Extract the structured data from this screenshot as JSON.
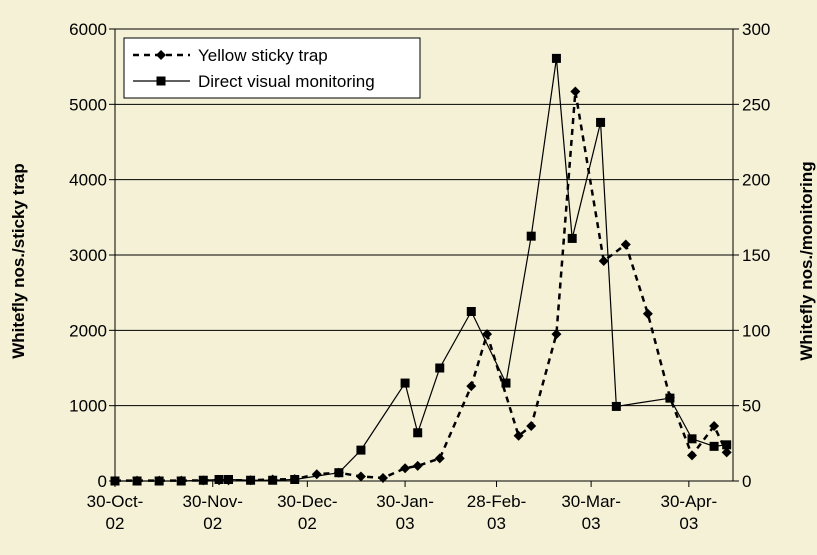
{
  "chart_data": {
    "type": "line",
    "title": "",
    "ylabel_left": "Whitefly nos./sticky trap",
    "ylabel_right": "Whitefly nos./monitoring",
    "ylim_left": [
      0,
      6000
    ],
    "ylim_right": [
      0,
      300
    ],
    "yticks_left": [
      "0",
      "1000",
      "2000",
      "3000",
      "4000",
      "5000",
      "6000"
    ],
    "yticks_right": [
      "0",
      "50",
      "100",
      "150",
      "200",
      "250",
      "300"
    ],
    "xlim": [
      "2002-10-30",
      "2003-05-14"
    ],
    "xticks": [
      {
        "date": "2002-10-30",
        "line1": "30-Oct-",
        "line2": "02"
      },
      {
        "date": "2002-11-30",
        "line1": "30-Nov-",
        "line2": "02"
      },
      {
        "date": "2002-12-30",
        "line1": "30-Dec-",
        "line2": "02"
      },
      {
        "date": "2003-01-30",
        "line1": "30-Jan-",
        "line2": "03"
      },
      {
        "date": "2003-02-28",
        "line1": "28-Feb-",
        "line2": "03"
      },
      {
        "date": "2003-03-30",
        "line1": "30-Mar-",
        "line2": "03"
      },
      {
        "date": "2003-04-30",
        "line1": "30-Apr-",
        "line2": "03"
      }
    ],
    "grid": "horizontal",
    "legend_position": "top-left",
    "series": [
      {
        "name": "Yellow sticky trap",
        "axis": "left",
        "style": "dashed",
        "marker": "diamond",
        "points": [
          {
            "x": "2002-10-30",
            "y": 5
          },
          {
            "x": "2002-11-06",
            "y": 5
          },
          {
            "x": "2002-11-13",
            "y": 5
          },
          {
            "x": "2002-11-20",
            "y": 5
          },
          {
            "x": "2002-11-27",
            "y": 8
          },
          {
            "x": "2002-12-02",
            "y": 10
          },
          {
            "x": "2002-12-05",
            "y": 10
          },
          {
            "x": "2002-12-12",
            "y": 10
          },
          {
            "x": "2002-12-19",
            "y": 20
          },
          {
            "x": "2002-12-26",
            "y": 25
          },
          {
            "x": "2003-01-02",
            "y": 90
          },
          {
            "x": "2003-01-09",
            "y": 110
          },
          {
            "x": "2003-01-16",
            "y": 60
          },
          {
            "x": "2003-01-23",
            "y": 40
          },
          {
            "x": "2003-01-30",
            "y": 170
          },
          {
            "x": "2003-02-03",
            "y": 200
          },
          {
            "x": "2003-02-10",
            "y": 300
          },
          {
            "x": "2003-02-20",
            "y": 1260
          },
          {
            "x": "2003-02-25",
            "y": 1950
          },
          {
            "x": "2003-03-07",
            "y": 600
          },
          {
            "x": "2003-03-11",
            "y": 730
          },
          {
            "x": "2003-03-19",
            "y": 1950
          },
          {
            "x": "2003-03-25",
            "y": 5170
          },
          {
            "x": "2003-04-03",
            "y": 2920
          },
          {
            "x": "2003-04-10",
            "y": 3140
          },
          {
            "x": "2003-04-17",
            "y": 2220
          },
          {
            "x": "2003-04-24",
            "y": 1110
          },
          {
            "x": "2003-05-01",
            "y": 340
          },
          {
            "x": "2003-05-08",
            "y": 730
          },
          {
            "x": "2003-05-12",
            "y": 380
          }
        ]
      },
      {
        "name": "Direct visual monitoring",
        "axis": "right",
        "style": "solid",
        "marker": "square",
        "points": [
          {
            "x": "2002-10-30",
            "y": 0
          },
          {
            "x": "2002-11-06",
            "y": 0
          },
          {
            "x": "2002-11-13",
            "y": 0
          },
          {
            "x": "2002-11-20",
            "y": 0
          },
          {
            "x": "2002-11-27",
            "y": 0.5
          },
          {
            "x": "2002-12-02",
            "y": 1
          },
          {
            "x": "2002-12-05",
            "y": 1
          },
          {
            "x": "2002-12-12",
            "y": 0.5
          },
          {
            "x": "2002-12-19",
            "y": 0.5
          },
          {
            "x": "2002-12-26",
            "y": 1
          },
          {
            "x": "2003-01-09",
            "y": 5.5
          },
          {
            "x": "2003-01-16",
            "y": 20.5
          },
          {
            "x": "2003-01-30",
            "y": 65
          },
          {
            "x": "2003-02-03",
            "y": 32
          },
          {
            "x": "2003-02-10",
            "y": 75
          },
          {
            "x": "2003-02-20",
            "y": 112.5
          },
          {
            "x": "2003-03-03",
            "y": 65
          },
          {
            "x": "2003-03-11",
            "y": 162.5
          },
          {
            "x": "2003-03-19",
            "y": 280.5
          },
          {
            "x": "2003-03-24",
            "y": 161
          },
          {
            "x": "2003-04-02",
            "y": 238
          },
          {
            "x": "2003-04-07",
            "y": 49.5
          },
          {
            "x": "2003-04-24",
            "y": 55
          },
          {
            "x": "2003-05-01",
            "y": 28
          },
          {
            "x": "2003-05-08",
            "y": 23
          },
          {
            "x": "2003-05-12",
            "y": 24
          }
        ]
      }
    ]
  }
}
